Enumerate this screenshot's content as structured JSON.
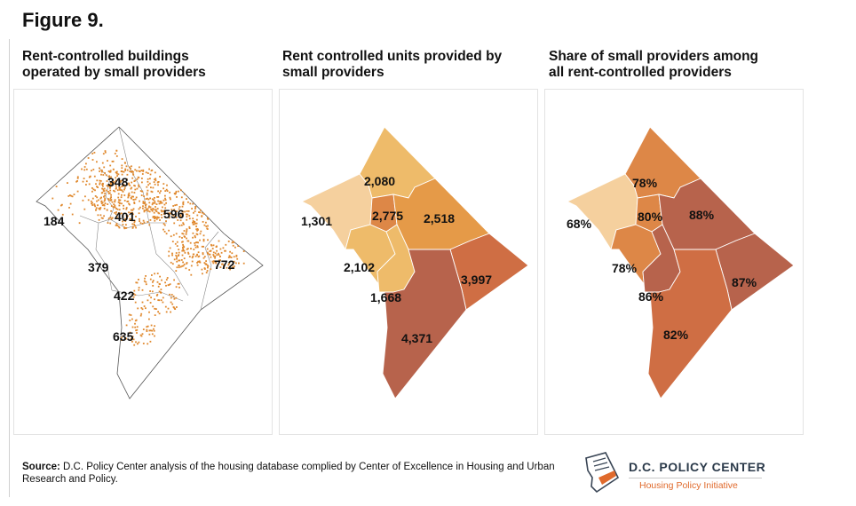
{
  "figure_title": "Figure 9.",
  "panels": [
    {
      "title_line1": "Rent-controlled buildings",
      "title_line2": "operated by small providers",
      "labels": [
        "348",
        "401",
        "596",
        "184",
        "379",
        "772",
        "422",
        "635"
      ]
    },
    {
      "title_line1": "Rent controlled units provided by",
      "title_line2": "small providers",
      "labels": [
        "2,080",
        "1,301",
        "2,775",
        "2,518",
        "2,102",
        "3,997",
        "1,668",
        "4,371"
      ]
    },
    {
      "title_line1": "Share of small providers among",
      "title_line2": "all rent-controlled providers",
      "labels": [
        "78%",
        "68%",
        "80%",
        "88%",
        "78%",
        "87%",
        "86%",
        "82%"
      ]
    }
  ],
  "source": {
    "label": "Source:",
    "text": " D.C. Policy Center analysis of the housing database complied by Center of Excellence in Housing and Urban Research and Policy."
  },
  "logo": {
    "name": "D.C. POLICY CENTER",
    "subtitle": "Housing Policy Initiative"
  },
  "colors": {
    "dot": "#e0892e",
    "shade_1": "#f5d09e",
    "shade_2": "#eebb6a",
    "shade_3": "#e59a48",
    "shade_4": "#dd8747",
    "shade_5": "#cf6e44",
    "shade_6": "#b7634c"
  }
}
